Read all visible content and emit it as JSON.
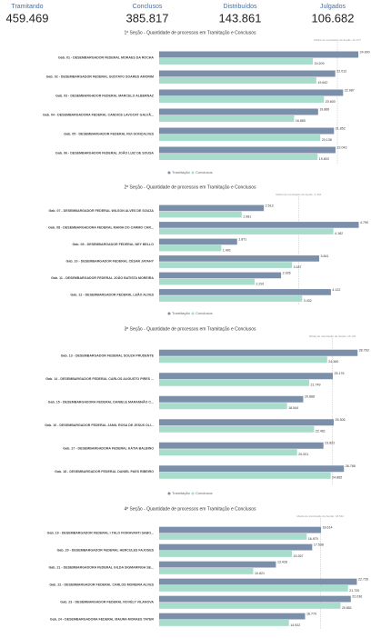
{
  "kpis": [
    {
      "label": "Tramitando",
      "value": "459.469"
    },
    {
      "label": "Conclusos",
      "value": "385.817"
    },
    {
      "label": "Distribuídos",
      "value": "143.861"
    },
    {
      "label": "Julgados",
      "value": "106.682"
    }
  ],
  "chart_data": [
    {
      "type": "bar",
      "orientation": "horizontal",
      "title": "1ª Seção - Quantidade de processos em Tramitação e Conclusos",
      "annotation": {
        "label": "Média de tramitação da Seção: 22.277",
        "value": 22277
      },
      "categories": [
        "Gab. 01 - DESEMBARGADOR FEDERAL MORAES DA ROCHA",
        "Gab. 02 - DESEMBARGADOR FEDERAL GUSTAVO SOARES AMORIM",
        "Gab. 03 - DESEMBARGADOR FEDERAL MARCELO ALBERNAZ",
        "Gab. 04 - DESEMBARGADORA FEDERAL CANDICE LAVOCAT GALVÃ...",
        "Gab. 05 - DESEMBARGADOR FEDERAL RUI GONÇALVES",
        "Gab. 06 - DESEMBARGADOR FEDERAL JOÃO LUIZ DE SOUSA"
      ],
      "series": [
        {
          "name": "Tramitação",
          "color": "#7b8fab",
          "values": [
            24900,
            22012,
            22987,
            19866,
            21852,
            22043
          ],
          "value_labels": [
            "24.900",
            "22.012",
            "22.987",
            "19.866",
            "21.852",
            "22.043"
          ]
        },
        {
          "name": "Conclusos",
          "color": "#a8dccb",
          "values": [
            19209,
            19642,
            20600,
            16865,
            20138,
            19803
          ],
          "value_labels": [
            "19.209",
            "19.642",
            "20.600",
            "16.865",
            "20.138",
            "19.803"
          ]
        }
      ],
      "xlim": [
        0,
        25000
      ],
      "legend": true
    },
    {
      "type": "bar",
      "orientation": "horizontal",
      "title": "2ª Seção - Quantidade de processos em Tramitação e Conclusos",
      "annotation": {
        "label": "Média de tramitação da Seção: 3.344",
        "value": 3344
      },
      "categories": [
        "Gab. 07 - DESEMBARGADOR FEDERAL WILSON ALVES DE SOUZA",
        "Gab. 08 - DESEMBARGADORA FEDERAL MARIA DO CARMO CAR...",
        "Gab. 09 - DESEMBARGADOR FEDERAL NEY BELLO",
        "Gab. 10 - DESEMBARGADOR FEDERAL CÉSAR JATAHY",
        "Gab. 11 - DESEMBARGADOR FEDERAL JOÃO BATISTA MOREIRA",
        "Gab. 12 - DESEMBARGADOR FEDERAL LEÃO ALVES"
      ],
      "series": [
        {
          "name": "Tramitação",
          "color": "#7b8fab",
          "values": [
            2513,
            4790,
            1871,
            3841,
            2926,
            4122
          ],
          "value_labels": [
            "2.513",
            "4.790",
            "1.871",
            "3.841",
            "2.926",
            "4.122"
          ]
        },
        {
          "name": "Conclusos",
          "color": "#a8dccb",
          "values": [
            1981,
            4182,
            1491,
            3187,
            2291,
            3432
          ],
          "value_labels": [
            "1.981",
            "4.182",
            "1.491",
            "3.187",
            "2.291",
            "3.432"
          ]
        }
      ],
      "xlim": [
        0,
        4800
      ],
      "legend": true
    },
    {
      "type": "bar",
      "orientation": "horizontal",
      "title": "3ª Seção - Quantidade de processos em Tramitação e Conclusos",
      "annotation": {
        "label": "Média de tramitação da Seção: 25.124",
        "value": 25124
      },
      "categories": [
        "Gab. 13 - DESEMBARGADOR FEDERAL SOUZA PRUDENTE",
        "Gab. 14 - DESEMBARGADOR FEDERAL CARLOS AUGUSTO PIRES ...",
        "Gab. 15 - DESEMBARGADORA FEDERAL DANIELE MARANHÃO C...",
        "Gab. 16 - DESEMBARGADOR FEDERAL JAMIL ROSA DE JESUS OLI...",
        "Gab. 17 - DESEMBARGADORA FEDERAL KÁTIA BALBINO",
        "Gab. 18 - DESEMBARGADOR FEDERAL DANIEL PAES RIBEIRO"
      ],
      "series": [
        {
          "name": "Tramitação",
          "color": "#7b8fab",
          "values": [
            28763,
            25176,
            20888,
            25306,
            23822,
            26788
          ],
          "value_labels": [
            "28.763",
            "25.176",
            "20.888",
            "25.306",
            "23.822",
            "26.788"
          ]
        },
        {
          "name": "Conclusos",
          "color": "#a8dccb",
          "values": [
            24360,
            21749,
            18544,
            22461,
            20001,
            24865
          ],
          "value_labels": [
            "24.360",
            "21.749",
            "18.544",
            "22.461",
            "20.001",
            "24.865"
          ]
        }
      ],
      "xlim": [
        0,
        29000
      ],
      "legend": true
    },
    {
      "type": "bar",
      "orientation": "horizontal",
      "title": "4ª Seção - Quantidade de processos em Tramitação e Conclusos",
      "annotation": {
        "label": "Média de tramitação da Seção: 18.532",
        "value": 18532
      },
      "categories": [
        "Gab. 19 - DESEMBARGADOR FEDERAL I TALO FIORAVANTI SABO...",
        "Gab. 20 - DESEMBARGADOR FEDERAL HERCULES FAJOSES",
        "Gab. 21 - DESEMBARGADORA FEDERAL GILDA SIGMARINGA SE...",
        "Gab. 22 - DESEMBARGADOR FEDERAL CARLOS MOREIRA ALVES",
        "Gab. 23 - DESEMBARGADOR FEDERAL NOVÉLY VILANOVA",
        "Gab. 24 - DESEMBARGADORA FEDERAL MAURA MORAES TAYER"
      ],
      "series": [
        {
          "color": "#7b8fab",
          "values": [
            18614,
            17598,
            13428,
            22735,
            22036,
            16779
          ],
          "value_labels": [
            "18.614",
            "17.598",
            "13.428",
            "22.735",
            "22.036",
            "16.779"
          ]
        },
        {
          "color": "#a8dccb",
          "values": [
            16970,
            15267,
            10821,
            21720,
            20851,
            14922
          ],
          "value_labels": [
            "16.970",
            "15.267",
            "10.821",
            "21.720",
            "20.851",
            "14.922"
          ]
        }
      ],
      "xlim": [
        0,
        23000
      ],
      "legend": false
    }
  ]
}
